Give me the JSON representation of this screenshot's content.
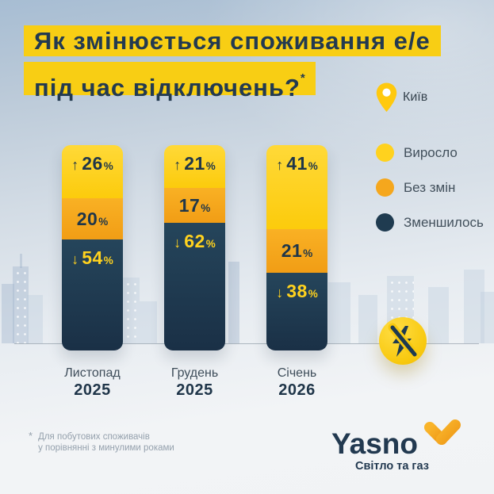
{
  "title": {
    "line1": "Як змінюється споживання е/е",
    "line2": "під час відключень?",
    "footnote_marker": "*"
  },
  "location": {
    "city": "Київ"
  },
  "legend": {
    "items": [
      {
        "label": "Виросло",
        "color": "#FFD21E"
      },
      {
        "label": "Без змін",
        "color": "#F5A71D"
      },
      {
        "label": "Зменшилось",
        "color": "#1F3B50"
      }
    ]
  },
  "chart_data": {
    "type": "bar",
    "stacked": true,
    "title": "Як змінюється споживання е/е під час відключень?",
    "value_unit": "%",
    "total_per_bar": 100,
    "legend_position": "right",
    "categories": [
      {
        "month": "Листопад",
        "year": "2025"
      },
      {
        "month": "Грудень",
        "year": "2025"
      },
      {
        "month": "Січень",
        "year": "2026"
      }
    ],
    "series": [
      {
        "name": "Виросло",
        "arrow": "↑",
        "color": "#FFD21E",
        "values": [
          26,
          21,
          41
        ]
      },
      {
        "name": "Без змін",
        "arrow": "",
        "color": "#F5A71D",
        "values": [
          20,
          17,
          21
        ]
      },
      {
        "name": "Зменшилось",
        "arrow": "↓",
        "color": "#1F3B50",
        "values": [
          54,
          62,
          38
        ]
      }
    ]
  },
  "footnote": {
    "marker": "*",
    "line1": "Для побутових споживачів",
    "line2": "у порівнянні з минулими роками"
  },
  "brand": {
    "name": "Yasno",
    "tagline": "Світло та газ"
  },
  "icons": {
    "location_pin": "map-pin",
    "outage_badge": "crossed-lightning-bolt",
    "brand_mark": "yasno-y"
  },
  "colors": {
    "title_highlight": "#F8CE14",
    "accent_yellow": "#FFD21E",
    "accent_orange": "#F5A71D",
    "navy": "#1F3B50",
    "background_top": "#A7BDD3",
    "background_bottom": "#F1F3F5"
  }
}
